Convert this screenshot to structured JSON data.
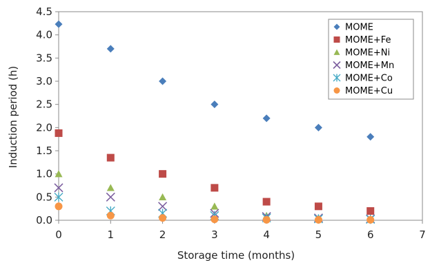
{
  "chart_data": {
    "type": "scatter",
    "title": "",
    "xlabel": "Storage time (months)",
    "ylabel": "Induction period (h)",
    "xlim": [
      0,
      7
    ],
    "ylim": [
      0,
      4.5
    ],
    "x_ticks": [
      "0",
      "1",
      "2",
      "3",
      "4",
      "5",
      "6",
      "7"
    ],
    "y_ticks": [
      "0.0",
      "0.5",
      "1.0",
      "1.5",
      "2.0",
      "2.5",
      "3.0",
      "3.5",
      "4.0",
      "4.5"
    ],
    "grid": false,
    "legend_position": "top-right",
    "series": [
      {
        "name": "MOME",
        "marker": "diamond",
        "color": "#4A7EBB",
        "points": [
          [
            0,
            4.23
          ],
          [
            1,
            3.7
          ],
          [
            2,
            3.0
          ],
          [
            3,
            2.5
          ],
          [
            4,
            2.2
          ],
          [
            5,
            2.0
          ],
          [
            6,
            1.8
          ]
        ]
      },
      {
        "name": "MOME+Fe",
        "marker": "square",
        "color": "#BE4B48",
        "points": [
          [
            0,
            1.88
          ],
          [
            1,
            1.35
          ],
          [
            2,
            1.0
          ],
          [
            3,
            0.7
          ],
          [
            4,
            0.4
          ],
          [
            5,
            0.3
          ],
          [
            6,
            0.2
          ]
        ]
      },
      {
        "name": "MOME+Ni",
        "marker": "triangle",
        "color": "#98B954",
        "points": [
          [
            0,
            1.0
          ],
          [
            1,
            0.7
          ],
          [
            2,
            0.5
          ],
          [
            3,
            0.3
          ],
          [
            4,
            0.1
          ],
          [
            5,
            0.05
          ],
          [
            6,
            0.03
          ]
        ]
      },
      {
        "name": "MOME+Mn",
        "marker": "x",
        "color": "#7D60A0",
        "points": [
          [
            0,
            0.7
          ],
          [
            1,
            0.5
          ],
          [
            2,
            0.3
          ],
          [
            3,
            0.15
          ],
          [
            4,
            0.08
          ],
          [
            5,
            0.05
          ],
          [
            6,
            0.03
          ]
        ]
      },
      {
        "name": "MOME+Co",
        "marker": "star",
        "color": "#46AAC5",
        "points": [
          [
            0,
            0.5
          ],
          [
            1,
            0.2
          ],
          [
            2,
            0.15
          ],
          [
            3,
            0.1
          ],
          [
            4,
            0.05
          ],
          [
            5,
            0.03
          ],
          [
            6,
            0.02
          ]
        ]
      },
      {
        "name": "MOME+Cu",
        "marker": "circle",
        "color": "#F79646",
        "points": [
          [
            0,
            0.3
          ],
          [
            1,
            0.1
          ],
          [
            2,
            0.05
          ],
          [
            3,
            0.02
          ],
          [
            4,
            0.01
          ],
          [
            5,
            0.01
          ],
          [
            6,
            0.01
          ]
        ]
      }
    ]
  }
}
